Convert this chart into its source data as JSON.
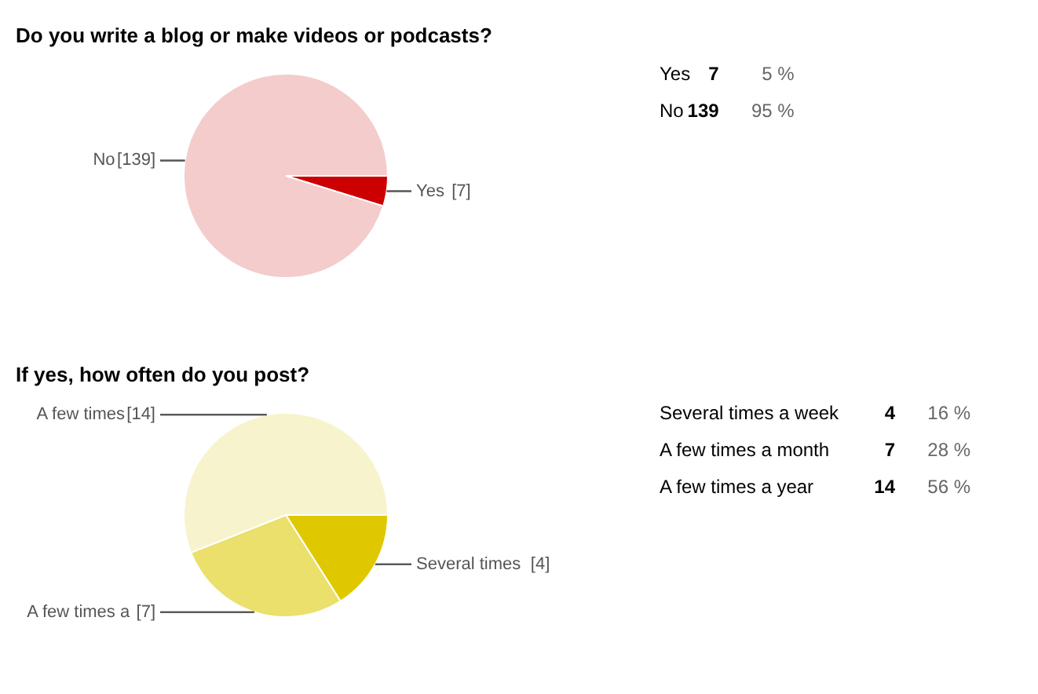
{
  "chart_data": [
    {
      "type": "pie",
      "title": "Do you write a blog or make videos or podcasts?",
      "categories": [
        "Yes",
        "No"
      ],
      "values": [
        7,
        139
      ],
      "colors": [
        "#cc0000",
        "#f4cccc"
      ],
      "value_labels": [
        "[7]",
        "[139]"
      ],
      "annotations": [
        "Yes",
        "7",
        "5 %",
        "No",
        "139",
        "95 %"
      ]
    },
    {
      "type": "pie",
      "title": "If yes, how often do you post?",
      "categories": [
        "Several times",
        "A few times a",
        "A few times "
      ],
      "values": [
        4,
        7,
        14
      ],
      "colors": [
        "#dfc800",
        "#eae06b",
        "#f7f3cc"
      ],
      "value_labels": [
        "[4]",
        "[7]",
        "[14]"
      ],
      "annotations": [
        "Several times a week",
        "4",
        "16 %",
        "A few times a month",
        "7",
        "28 %",
        "A few times a year",
        "14",
        "56 %"
      ]
    }
  ]
}
